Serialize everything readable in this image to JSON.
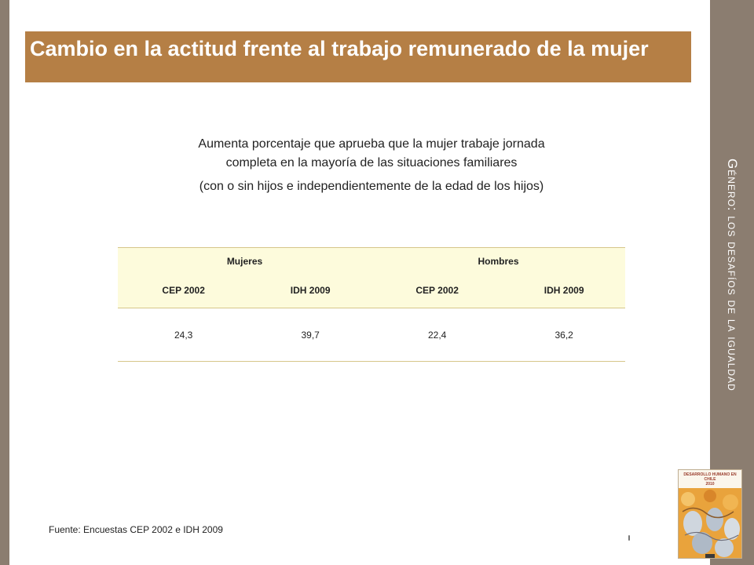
{
  "side_title": "Género: los desafíos de la igualdad",
  "slide_title": "Cambio en la actitud frente al trabajo remunerado de la mujer",
  "subtitle": {
    "line1": "Aumenta porcentaje que aprueba que la mujer trabaje jornada",
    "line2": "completa en la mayoría de las situaciones familiares",
    "line3": "(con o sin hijos e independientemente  de la edad de los hijos)"
  },
  "table": {
    "groups": [
      "Mujeres",
      "Hombres"
    ],
    "subheaders": [
      "CEP 2002",
      "IDH 2009",
      "CEP 2002",
      "IDH 2009"
    ],
    "values": [
      "24,3",
      "39,7",
      "22,4",
      "36,2"
    ]
  },
  "source": "Fuente: Encuestas CEP 2002 e IDH 2009",
  "book_cover": {
    "title": "DESARROLLO HUMANO EN CHILE",
    "year": "2010"
  },
  "colors": {
    "title_bar": "#b57f45",
    "side_band": "#8b7d70",
    "table_header_bg": "#fdfbdc",
    "table_rule": "#d6c68a"
  }
}
